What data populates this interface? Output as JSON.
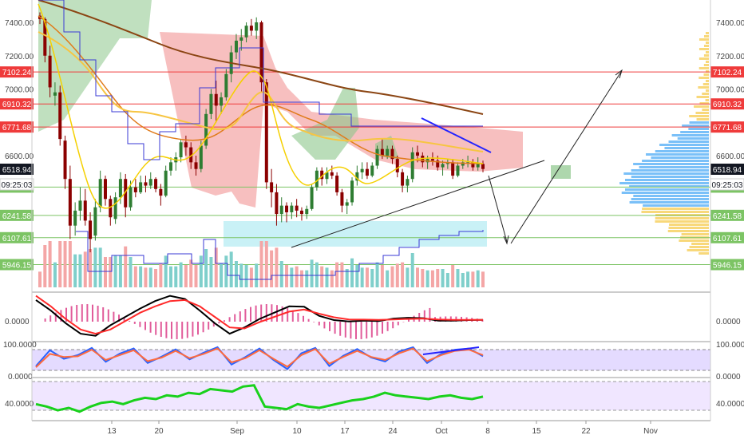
{
  "chart_data": [
    {
      "type": "candlestick",
      "panel": "price",
      "title": "",
      "price_ticks": [
        7400,
        7200,
        7000,
        6600
      ],
      "left_tick_labels": [
        "7400.00",
        "7200.00",
        "7000.00",
        "6600.00"
      ],
      "right_tick_labels": [
        "7400.00",
        "7200.00",
        "7000.00",
        "6600.00"
      ],
      "x_tick_labels": [
        "13",
        "20",
        "Sep",
        "10",
        "17",
        "24",
        "Oct",
        "8",
        "15",
        "22",
        "Nov"
      ],
      "horizontal_levels": [
        {
          "value": 7102.24,
          "label": "7102.24",
          "color": "#ef3b3b"
        },
        {
          "value": 6910.32,
          "label": "6910.32",
          "color": "#ef3b3b"
        },
        {
          "value": 6771.68,
          "label": "6771.68",
          "color": "#ef3b3b"
        },
        {
          "value": 6411.1,
          "label": "6411.10",
          "color": "#7cc464"
        },
        {
          "value": 6241.58,
          "label": "6241.58",
          "color": "#7cc464"
        },
        {
          "value": 6107.61,
          "label": "6107.61",
          "color": "#7cc464"
        },
        {
          "value": 5946.15,
          "label": "5946.15",
          "color": "#7cc464"
        }
      ],
      "current_price": {
        "label": "6518.94",
        "countdown": "09:25:03",
        "color": "#131722"
      },
      "candles": [
        [
          7440,
          7460,
          7390,
          7420
        ],
        [
          7420,
          7430,
          7160,
          7200
        ],
        [
          7200,
          7260,
          6950,
          7010
        ],
        [
          6960,
          7040,
          6900,
          6980
        ],
        [
          6980,
          7020,
          6660,
          6700
        ],
        [
          6690,
          6720,
          6400,
          6460
        ],
        [
          6460,
          6540,
          6100,
          6180
        ],
        [
          6180,
          6320,
          6120,
          6270
        ],
        [
          6270,
          6410,
          6210,
          6330
        ],
        [
          6330,
          6400,
          6180,
          6210
        ],
        [
          6210,
          6260,
          6020,
          6100
        ],
        [
          6120,
          6340,
          6090,
          6290
        ],
        [
          6290,
          6510,
          6260,
          6460
        ],
        [
          6460,
          6480,
          6300,
          6340
        ],
        [
          6340,
          6360,
          6180,
          6230
        ],
        [
          6220,
          6380,
          6190,
          6350
        ],
        [
          6350,
          6500,
          6310,
          6460
        ],
        [
          6460,
          6490,
          6230,
          6290
        ],
        [
          6290,
          6450,
          6270,
          6410
        ],
        [
          6410,
          6460,
          6350,
          6380
        ],
        [
          6380,
          6480,
          6370,
          6440
        ],
        [
          6440,
          6480,
          6380,
          6420
        ],
        [
          6420,
          6500,
          6400,
          6460
        ],
        [
          6460,
          6470,
          6380,
          6400
        ],
        [
          6400,
          6430,
          6300,
          6360
        ],
        [
          6360,
          6540,
          6350,
          6510
        ],
        [
          6510,
          6590,
          6480,
          6560
        ],
        [
          6560,
          6620,
          6510,
          6590
        ],
        [
          6590,
          6700,
          6560,
          6680
        ],
        [
          6680,
          6720,
          6600,
          6650
        ],
        [
          6650,
          6680,
          6520,
          6560
        ],
        [
          6560,
          6600,
          6480,
          6520
        ],
        [
          6520,
          6690,
          6500,
          6660
        ],
        [
          6660,
          6880,
          6640,
          6850
        ],
        [
          6850,
          7000,
          6820,
          6970
        ],
        [
          6970,
          7050,
          6800,
          6900
        ],
        [
          6900,
          6980,
          6850,
          6950
        ],
        [
          6950,
          7120,
          6930,
          7090
        ],
        [
          7090,
          7260,
          7040,
          7220
        ],
        [
          7220,
          7330,
          7180,
          7290
        ],
        [
          7290,
          7360,
          7230,
          7310
        ],
        [
          7310,
          7400,
          7280,
          7380
        ],
        [
          7380,
          7420,
          7320,
          7350
        ],
        [
          7350,
          7430,
          7300,
          7400
        ],
        [
          7400,
          7410,
          6980,
          7040
        ],
        [
          7040,
          7060,
          6400,
          6440
        ],
        [
          6440,
          6520,
          6290,
          6380
        ],
        [
          6380,
          6430,
          6180,
          6250
        ],
        [
          6250,
          6350,
          6200,
          6300
        ],
        [
          6300,
          6320,
          6200,
          6260
        ],
        [
          6260,
          6320,
          6220,
          6300
        ],
        [
          6300,
          6340,
          6230,
          6270
        ],
        [
          6270,
          6290,
          6210,
          6250
        ],
        [
          6250,
          6300,
          6220,
          6280
        ],
        [
          6280,
          6430,
          6270,
          6410
        ],
        [
          6410,
          6530,
          6390,
          6510
        ],
        [
          6510,
          6530,
          6420,
          6460
        ],
        [
          6460,
          6530,
          6430,
          6500
        ],
        [
          6500,
          6540,
          6460,
          6480
        ],
        [
          6480,
          6500,
          6360,
          6380
        ],
        [
          6380,
          6400,
          6260,
          6300
        ],
        [
          6300,
          6340,
          6250,
          6320
        ],
        [
          6320,
          6470,
          6300,
          6450
        ],
        [
          6450,
          6540,
          6420,
          6500
        ],
        [
          6500,
          6560,
          6460,
          6520
        ],
        [
          6520,
          6560,
          6460,
          6480
        ],
        [
          6480,
          6560,
          6470,
          6540
        ],
        [
          6540,
          6660,
          6520,
          6640
        ],
        [
          6640,
          6700,
          6580,
          6600
        ],
        [
          6600,
          6660,
          6580,
          6640
        ],
        [
          6640,
          6660,
          6550,
          6580
        ],
        [
          6580,
          6600,
          6470,
          6500
        ],
        [
          6500,
          6520,
          6380,
          6420
        ],
        [
          6420,
          6480,
          6380,
          6460
        ],
        [
          6460,
          6650,
          6440,
          6620
        ],
        [
          6620,
          6660,
          6560,
          6600
        ],
        [
          6600,
          6620,
          6530,
          6560
        ],
        [
          6560,
          6600,
          6520,
          6580
        ],
        [
          6580,
          6620,
          6540,
          6570
        ],
        [
          6570,
          6600,
          6510,
          6530
        ],
        [
          6530,
          6570,
          6480,
          6550
        ],
        [
          6550,
          6580,
          6520,
          6560
        ],
        [
          6560,
          6580,
          6460,
          6480
        ],
        [
          6480,
          6560,
          6470,
          6540
        ],
        [
          6540,
          6580,
          6520,
          6560
        ],
        [
          6560,
          6600,
          6530,
          6560
        ],
        [
          6560,
          6580,
          6510,
          6530
        ],
        [
          6530,
          6590,
          6510,
          6550
        ],
        [
          6550,
          6570,
          6500,
          6520
        ]
      ]
    },
    {
      "type": "line",
      "panel": "oscillator-1",
      "tick_labels": [
        "0.0000"
      ],
      "series": [
        {
          "color": "#000000",
          "values": [
            90,
            40,
            -20,
            -70,
            -80,
            -30,
            10,
            50,
            85,
            110,
            95,
            40,
            -20,
            -70,
            -40,
            0,
            30,
            60,
            58,
            15,
            -5,
            -12,
            -8,
            -10,
            2,
            6,
            4,
            -8,
            -8,
            -5,
            -4
          ]
        },
        {
          "color": "#ff2a2a",
          "values": [
            110,
            60,
            0,
            -50,
            -70,
            -50,
            -10,
            30,
            60,
            85,
            90,
            60,
            10,
            -40,
            -45,
            -15,
            10,
            35,
            45,
            25,
            8,
            -2,
            -3,
            -4,
            -2,
            0,
            2,
            -2,
            -4,
            -4,
            -4
          ]
        }
      ]
    },
    {
      "type": "line",
      "panel": "oscillator-2",
      "tick_labels": [
        "100.0000",
        "0.0000"
      ],
      "series": [
        {
          "color": "#2962ff",
          "values": [
            30,
            82,
            54,
            66,
            90,
            44,
            71,
            88,
            40,
            61,
            85,
            52,
            74,
            92,
            35,
            60,
            88,
            50,
            20,
            72,
            90,
            30,
            64,
            86,
            58,
            45,
            78,
            92,
            40,
            70,
            84,
            88,
            62
          ]
        },
        {
          "color": "#ff6a3d",
          "values": [
            26,
            70,
            60,
            62,
            84,
            50,
            66,
            82,
            46,
            58,
            80,
            56,
            70,
            88,
            42,
            56,
            82,
            54,
            28,
            66,
            86,
            38,
            60,
            80,
            60,
            50,
            72,
            88,
            46,
            66,
            80,
            84,
            66
          ]
        }
      ]
    },
    {
      "type": "line",
      "panel": "oscillator-3",
      "tick_labels": [
        "40.0000",
        "40.0000"
      ],
      "series": [
        {
          "color": "#19d11c",
          "values": [
            40,
            38,
            35,
            37,
            34,
            38,
            41,
            42,
            40,
            43,
            45,
            44,
            47,
            46,
            49,
            48,
            52,
            51,
            50,
            54,
            55,
            38,
            37,
            36,
            40,
            38,
            37,
            39,
            41,
            43,
            44,
            46,
            49,
            47,
            46,
            45,
            44,
            46,
            47,
            45,
            44,
            46
          ]
        }
      ]
    }
  ]
}
